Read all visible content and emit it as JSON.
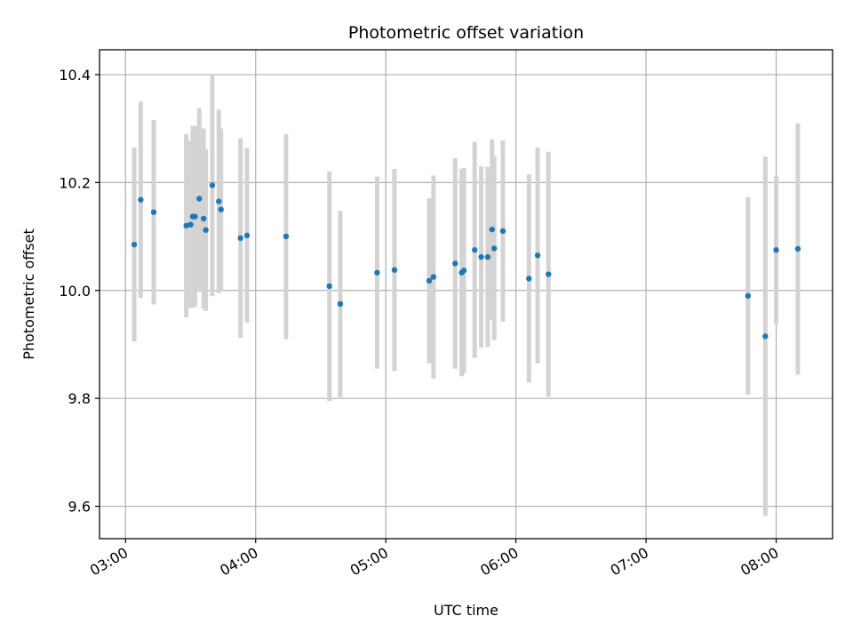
{
  "chart_data": {
    "type": "scatter",
    "title": "Photometric offset variation",
    "xlabel": "UTC time",
    "ylabel": "Photometric offset",
    "x_tick_labels": [
      "03:00",
      "04:00",
      "05:00",
      "06:00",
      "07:00",
      "08:00"
    ],
    "y_tick_labels": [
      "9.6",
      "9.8",
      "10.0",
      "10.2",
      "10.4"
    ],
    "xlim": [
      "02:48",
      "08:26"
    ],
    "ylim": [
      9.54,
      10.446
    ],
    "grid": true,
    "colors": {
      "point": "#1f77b4",
      "errorbar": "#d3d3d3",
      "grid": "#b0b0b0"
    },
    "points": [
      {
        "x": "03:04",
        "y": 10.085,
        "err": 0.18
      },
      {
        "x": "03:07",
        "y": 10.168,
        "err": 0.182
      },
      {
        "x": "03:13",
        "y": 10.145,
        "err": 0.171
      },
      {
        "x": "03:28",
        "y": 10.12,
        "err": 0.17
      },
      {
        "x": "03:30",
        "y": 10.122,
        "err": 0.155
      },
      {
        "x": "03:31",
        "y": 10.137,
        "err": 0.168
      },
      {
        "x": "03:32",
        "y": 10.137,
        "err": 0.168
      },
      {
        "x": "03:34",
        "y": 10.17,
        "err": 0.168
      },
      {
        "x": "03:36",
        "y": 10.133,
        "err": 0.167
      },
      {
        "x": "03:37",
        "y": 10.112,
        "err": 0.15
      },
      {
        "x": "03:40",
        "y": 10.195,
        "err": 0.205
      },
      {
        "x": "03:43",
        "y": 10.165,
        "err": 0.17
      },
      {
        "x": "03:44",
        "y": 10.15,
        "err": 0.15
      },
      {
        "x": "03:53",
        "y": 10.097,
        "err": 0.185
      },
      {
        "x": "03:56",
        "y": 10.102,
        "err": 0.162
      },
      {
        "x": "04:14",
        "y": 10.1,
        "err": 0.19
      },
      {
        "x": "04:34",
        "y": 10.008,
        "err": 0.213
      },
      {
        "x": "04:39",
        "y": 9.975,
        "err": 0.173
      },
      {
        "x": "04:56",
        "y": 10.033,
        "err": 0.178
      },
      {
        "x": "05:04",
        "y": 10.038,
        "err": 0.187
      },
      {
        "x": "05:20",
        "y": 10.018,
        "err": 0.153
      },
      {
        "x": "05:22",
        "y": 10.025,
        "err": 0.188
      },
      {
        "x": "05:32",
        "y": 10.05,
        "err": 0.195
      },
      {
        "x": "05:35",
        "y": 10.033,
        "err": 0.192
      },
      {
        "x": "05:36",
        "y": 10.037,
        "err": 0.19
      },
      {
        "x": "05:41",
        "y": 10.075,
        "err": 0.2
      },
      {
        "x": "05:44",
        "y": 10.062,
        "err": 0.168
      },
      {
        "x": "05:47",
        "y": 10.062,
        "err": 0.167
      },
      {
        "x": "05:49",
        "y": 10.113,
        "err": 0.167
      },
      {
        "x": "05:50",
        "y": 10.078,
        "err": 0.17
      },
      {
        "x": "05:54",
        "y": 10.11,
        "err": 0.168
      },
      {
        "x": "06:06",
        "y": 10.022,
        "err": 0.193
      },
      {
        "x": "06:10",
        "y": 10.065,
        "err": 0.2
      },
      {
        "x": "06:15",
        "y": 10.03,
        "err": 0.227
      },
      {
        "x": "07:47",
        "y": 9.99,
        "err": 0.183
      },
      {
        "x": "07:55",
        "y": 9.915,
        "err": 0.333
      },
      {
        "x": "08:00",
        "y": 10.075,
        "err": 0.137
      },
      {
        "x": "08:10",
        "y": 10.077,
        "err": 0.233
      }
    ]
  }
}
